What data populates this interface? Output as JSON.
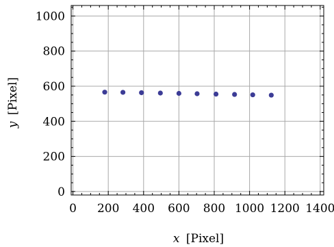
{
  "chart_data": {
    "type": "scatter",
    "xlabel_var": "x",
    "xlabel_unit": "[Pixel]",
    "ylabel_var": "y",
    "ylabel_unit": "[Pixel]",
    "xlim": [
      -10,
      1420
    ],
    "ylim": [
      -20,
      1060
    ],
    "xticks": [
      0,
      200,
      400,
      600,
      800,
      1000,
      1200,
      1400
    ],
    "yticks": [
      0,
      200,
      400,
      600,
      800,
      1000
    ],
    "xtick_labels": [
      "0",
      "200",
      "400",
      "600",
      "800",
      "1000",
      "1200",
      "1400"
    ],
    "ytick_labels": [
      "0",
      "200",
      "400",
      "600",
      "800",
      "1000"
    ],
    "grid": true,
    "marker_color": "#3c3c96",
    "points": [
      {
        "x": 180,
        "y": 566
      },
      {
        "x": 283,
        "y": 565
      },
      {
        "x": 388,
        "y": 563
      },
      {
        "x": 495,
        "y": 561
      },
      {
        "x": 600,
        "y": 559
      },
      {
        "x": 703,
        "y": 557
      },
      {
        "x": 810,
        "y": 555
      },
      {
        "x": 915,
        "y": 553
      },
      {
        "x": 1018,
        "y": 551
      },
      {
        "x": 1123,
        "y": 549
      }
    ]
  }
}
